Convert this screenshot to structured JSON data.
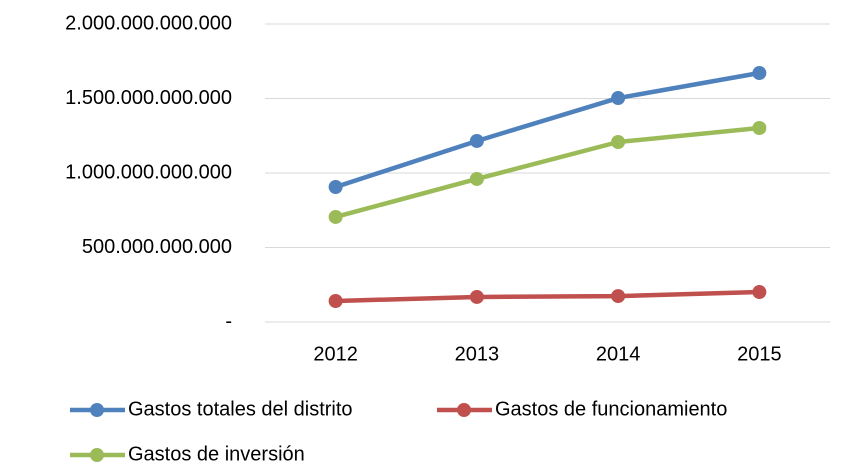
{
  "chart_data": {
    "type": "line",
    "categories": [
      "2012",
      "2013",
      "2014",
      "2015"
    ],
    "series": [
      {
        "name": "Gastos totales del distrito",
        "color": "#4f81bd",
        "values": [
          906000000000,
          1215000000000,
          1503000000000,
          1671000000000
        ]
      },
      {
        "name": "Gastos de funcionamiento",
        "color": "#c0504d",
        "values": [
          141000000000,
          168000000000,
          174000000000,
          201000000000
        ]
      },
      {
        "name": "Gastos de inversión",
        "color": "#9bbb59",
        "values": [
          705000000000,
          960000000000,
          1208000000000,
          1302000000000
        ]
      }
    ],
    "ylim": [
      0,
      2000000000000
    ],
    "yticks": [
      {
        "value": 0,
        "label": "-"
      },
      {
        "value": 500000000000,
        "label": "500.000.000.000"
      },
      {
        "value": 1000000000000,
        "label": "1.000.000.000.000"
      },
      {
        "value": 1500000000000,
        "label": "1.500.000.000.000"
      },
      {
        "value": 2000000000000,
        "label": "2.000.000.000.000"
      }
    ],
    "grid": true,
    "legend": "bottom"
  }
}
